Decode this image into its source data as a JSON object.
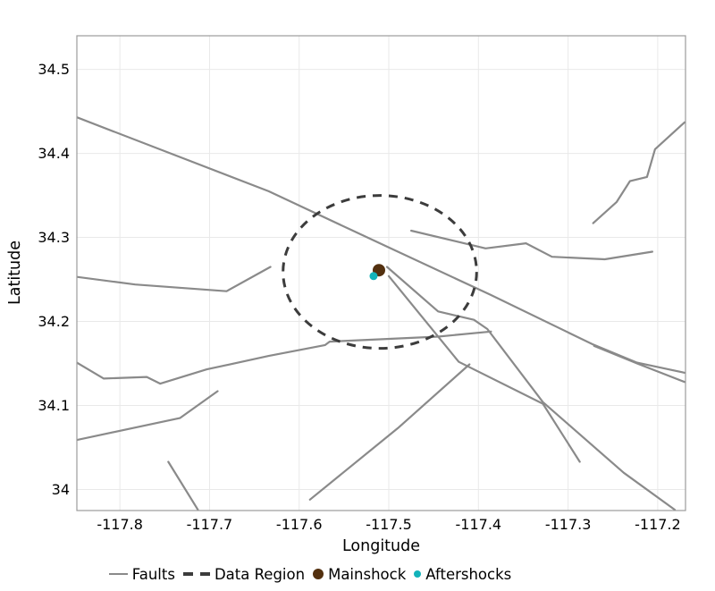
{
  "chart_data": {
    "type": "scatter",
    "title": "",
    "xlabel": "Longitude",
    "ylabel": "Latitude",
    "xlim": [
      -117.848,
      -117.169
    ],
    "ylim": [
      33.975,
      34.54
    ],
    "x_ticks": [
      -117.8,
      -117.7,
      -117.6,
      -117.5,
      -117.4,
      -117.3,
      -117.2
    ],
    "x_tick_labels": [
      "-117.8",
      "-117.7",
      "-117.6",
      "-117.5",
      "-117.4",
      "-117.3",
      "-117.2"
    ],
    "y_ticks": [
      34.0,
      34.1,
      34.2,
      34.3,
      34.4,
      34.5
    ],
    "y_tick_labels": [
      "34",
      "34.1",
      "34.2",
      "34.3",
      "34.4",
      "34.5"
    ],
    "grid": "major",
    "legend_position": "bottom",
    "colors": {
      "faults": "#8a8a8a",
      "data_region": "#3c3c3c",
      "mainshock": "#53300f",
      "aftershocks": "#12b3ba",
      "gridline": "#e9e9e9",
      "panel_border": "#9b9b9b",
      "text": "#000000"
    },
    "series": [
      {
        "name": "Faults",
        "type": "line",
        "color": "#8a8a8a",
        "polylines": [
          [
            [
              -117.848,
              34.443
            ],
            [
              -117.634,
              34.355
            ],
            [
              -117.5,
              34.288
            ],
            [
              -117.387,
              34.232
            ],
            [
              -117.273,
              34.173
            ],
            [
              -117.223,
              34.151
            ],
            [
              -117.17,
              34.139
            ]
          ],
          [
            [
              -117.271,
              34.171
            ],
            [
              -117.223,
              34.15
            ],
            [
              -117.17,
              34.128
            ]
          ],
          [
            [
              -117.848,
              34.253
            ],
            [
              -117.783,
              34.244
            ],
            [
              -117.681,
              34.236
            ],
            [
              -117.632,
              34.265
            ]
          ],
          [
            [
              -117.475,
              34.308
            ],
            [
              -117.392,
              34.287
            ],
            [
              -117.347,
              34.293
            ],
            [
              -117.318,
              34.277
            ],
            [
              -117.259,
              34.274
            ],
            [
              -117.206,
              34.283
            ]
          ],
          [
            [
              -117.848,
              34.151
            ],
            [
              -117.818,
              34.132
            ],
            [
              -117.77,
              34.134
            ],
            [
              -117.755,
              34.126
            ],
            [
              -117.703,
              34.143
            ],
            [
              -117.634,
              34.159
            ],
            [
              -117.571,
              34.172
            ],
            [
              -117.566,
              34.176
            ],
            [
              -117.445,
              34.182
            ],
            [
              -117.386,
              34.188
            ]
          ],
          [
            [
              -117.502,
              34.265
            ],
            [
              -117.445,
              34.212
            ],
            [
              -117.405,
              34.202
            ],
            [
              -117.39,
              34.191
            ],
            [
              -117.328,
              34.104
            ],
            [
              -117.238,
              34.02
            ],
            [
              -117.181,
              33.976
            ]
          ],
          [
            [
              -117.5,
              34.254
            ],
            [
              -117.422,
              34.152
            ],
            [
              -117.328,
              34.102
            ],
            [
              -117.287,
              34.033
            ]
          ],
          [
            [
              -117.588,
              33.988
            ],
            [
              -117.49,
              34.073
            ],
            [
              -117.41,
              34.149
            ]
          ],
          [
            [
              -117.746,
              34.033
            ],
            [
              -117.713,
              33.976
            ]
          ],
          [
            [
              -117.848,
              34.059
            ],
            [
              -117.733,
              34.085
            ],
            [
              -117.691,
              34.117
            ]
          ],
          [
            [
              -117.272,
              34.317
            ],
            [
              -117.246,
              34.342
            ],
            [
              -117.231,
              34.367
            ],
            [
              -117.212,
              34.372
            ],
            [
              -117.203,
              34.405
            ],
            [
              -117.17,
              34.437
            ]
          ]
        ]
      },
      {
        "name": "Data Region",
        "type": "ellipse",
        "dashed": true,
        "color": "#3c3c3c",
        "center": [
          -117.51,
          34.259
        ],
        "rx_deg": 0.108,
        "ry_deg": 0.091
      },
      {
        "name": "Mainshock",
        "type": "scatter",
        "color": "#53300f",
        "points": [
          [
            -117.511,
            34.261
          ]
        ]
      },
      {
        "name": "Aftershocks",
        "type": "scatter",
        "color": "#12b3ba",
        "points": [
          [
            -117.517,
            34.254
          ]
        ]
      }
    ]
  }
}
